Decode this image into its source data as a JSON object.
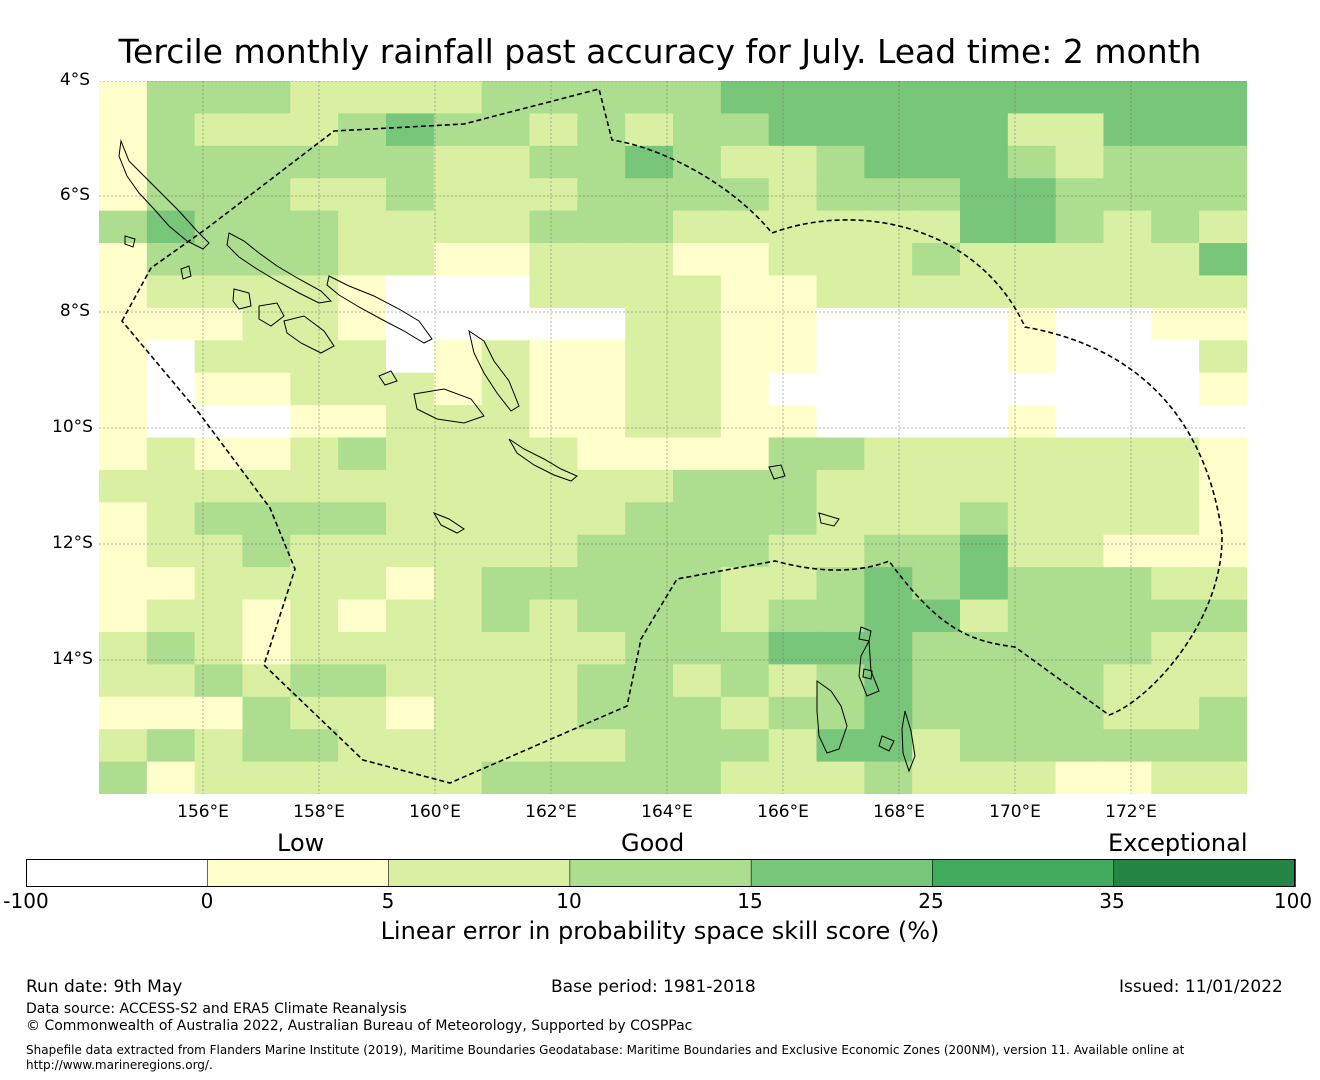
{
  "title": "Tercile monthly rainfall past accuracy for July. Lead time: 2 month",
  "map": {
    "lat_labels": [
      "4°S",
      "6°S",
      "8°S",
      "10°S",
      "12°S",
      "14°S"
    ],
    "lon_labels": [
      "156°E",
      "158°E",
      "160°E",
      "162°E",
      "164°E",
      "166°E",
      "168°E",
      "170°E",
      "172°E"
    ],
    "extent": {
      "lon": [
        154.2,
        174.0
      ],
      "lat": [
        -4.0,
        -16.3
      ]
    },
    "grid_cell_deg": 0.83,
    "boundary": "Exclusive Economic Zone (dashed)"
  },
  "legend": {
    "categories": [
      "Low",
      "Good",
      "Exceptional"
    ],
    "ticks": [
      "-100",
      "0",
      "5",
      "10",
      "15",
      "25",
      "35",
      "100"
    ],
    "colors": [
      "#ffffff",
      "#ffffcc",
      "#d9f0a3",
      "#addd8e",
      "#78c679",
      "#41ab5d",
      "#238443"
    ],
    "label": "Linear error in probability space skill score (%)"
  },
  "footer": {
    "run_date": "Run date: 9th May",
    "base_period": "Base period: 1981-2018",
    "issued": "Issued: 11/01/2022",
    "data_source": "Data source: ACCESS-S2 and ERA5 Climate Reanalysis",
    "copyright": "© Commonwealth of Australia 2022, Australian Bureau of Meteorology, Supported by COSPPac",
    "shapefile_line1": "Shapefile data extracted from Flanders Marine Institute (2019), Maritime Boundaries Geodatabase: Maritime Boundaries and Exclusive Economic Zones (200NM), version 11. Available online at",
    "shapefile_line2": "http://www.marineregions.org/."
  }
}
